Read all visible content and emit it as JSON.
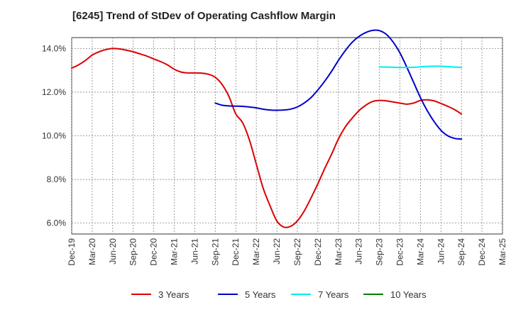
{
  "chart_data": {
    "type": "line",
    "title": "[6245]  Trend of StDev of Operating Cashflow Margin",
    "xlabel": "",
    "ylabel": "",
    "x_ticks": [
      "Dec-19",
      "Mar-20",
      "Jun-20",
      "Sep-20",
      "Dec-20",
      "Mar-21",
      "Jun-21",
      "Sep-21",
      "Dec-21",
      "Mar-22",
      "Jun-22",
      "Sep-22",
      "Dec-22",
      "Mar-23",
      "Jun-23",
      "Sep-23",
      "Dec-23",
      "Mar-24",
      "Jun-24",
      "Sep-24",
      "Dec-24",
      "Mar-25"
    ],
    "y_ticks": [
      6.0,
      8.0,
      10.0,
      12.0,
      14.0
    ],
    "y_tick_labels": [
      "6.0%",
      "8.0%",
      "10.0%",
      "12.0%",
      "14.0%"
    ],
    "ylim": [
      5.5,
      14.5
    ],
    "grid": true,
    "legend_position": "bottom",
    "series": [
      {
        "name": "3 Years",
        "color": "#dd0000",
        "x": [
          "Dec-19",
          "Jan-20",
          "Feb-20",
          "Mar-20",
          "Apr-20",
          "May-20",
          "Jun-20",
          "Jul-20",
          "Aug-20",
          "Sep-20",
          "Oct-20",
          "Nov-20",
          "Dec-20",
          "Jan-21",
          "Feb-21",
          "Mar-21",
          "Apr-21",
          "May-21",
          "Jun-21",
          "Jul-21",
          "Aug-21",
          "Sep-21",
          "Oct-21",
          "Nov-21",
          "Dec-21",
          "Jan-22",
          "Feb-22",
          "Mar-22",
          "Apr-22",
          "May-22",
          "Jun-22",
          "Jul-22",
          "Aug-22",
          "Sep-22",
          "Oct-22",
          "Nov-22",
          "Dec-22",
          "Jan-23",
          "Feb-23",
          "Mar-23",
          "Apr-23",
          "May-23",
          "Jun-23",
          "Jul-23",
          "Aug-23",
          "Sep-23",
          "Oct-23",
          "Nov-23",
          "Dec-23",
          "Jan-24",
          "Feb-24",
          "Mar-24",
          "Apr-24",
          "May-24",
          "Jun-24",
          "Jul-24",
          "Aug-24",
          "Sep-24"
        ],
        "values": [
          13.1,
          13.25,
          13.45,
          13.7,
          13.85,
          13.95,
          14.0,
          13.98,
          13.92,
          13.85,
          13.75,
          13.65,
          13.52,
          13.4,
          13.25,
          13.05,
          12.92,
          12.88,
          12.88,
          12.87,
          12.82,
          12.68,
          12.35,
          11.8,
          11.0,
          10.6,
          9.8,
          8.7,
          7.6,
          6.8,
          6.1,
          5.82,
          5.85,
          6.1,
          6.55,
          7.15,
          7.8,
          8.5,
          9.15,
          9.85,
          10.4,
          10.8,
          11.15,
          11.4,
          11.57,
          11.62,
          11.6,
          11.55,
          11.5,
          11.45,
          11.5,
          11.62,
          11.65,
          11.6,
          11.48,
          11.35,
          11.2,
          11.0
        ]
      },
      {
        "name": "5 Years",
        "color": "#0000cc",
        "x": [
          "Sep-21",
          "Oct-21",
          "Nov-21",
          "Dec-21",
          "Jan-22",
          "Feb-22",
          "Mar-22",
          "Apr-22",
          "May-22",
          "Jun-22",
          "Jul-22",
          "Aug-22",
          "Sep-22",
          "Oct-22",
          "Nov-22",
          "Dec-22",
          "Jan-23",
          "Feb-23",
          "Mar-23",
          "Apr-23",
          "May-23",
          "Jun-23",
          "Jul-23",
          "Aug-23",
          "Sep-23",
          "Oct-23",
          "Nov-23",
          "Dec-23",
          "Jan-24",
          "Feb-24",
          "Mar-24",
          "Apr-24",
          "May-24",
          "Jun-24",
          "Jul-24",
          "Aug-24",
          "Sep-24"
        ],
        "values": [
          11.5,
          11.4,
          11.37,
          11.36,
          11.35,
          11.32,
          11.28,
          11.22,
          11.18,
          11.17,
          11.18,
          11.22,
          11.32,
          11.5,
          11.75,
          12.1,
          12.5,
          12.95,
          13.45,
          13.9,
          14.28,
          14.55,
          14.73,
          14.83,
          14.82,
          14.65,
          14.3,
          13.8,
          13.15,
          12.45,
          11.75,
          11.15,
          10.65,
          10.25,
          10.0,
          9.88,
          9.85
        ]
      },
      {
        "name": "7 Years",
        "color": "#00eeee",
        "x": [
          "Sep-23",
          "Oct-23",
          "Nov-23",
          "Dec-23",
          "Jan-24",
          "Feb-24",
          "Mar-24",
          "Apr-24",
          "May-24",
          "Jun-24",
          "Jul-24",
          "Aug-24",
          "Sep-24"
        ],
        "values": [
          13.15,
          13.15,
          13.14,
          13.13,
          13.13,
          13.14,
          13.16,
          13.18,
          13.19,
          13.19,
          13.17,
          13.15,
          13.13
        ]
      },
      {
        "name": "10 Years",
        "color": "#008000",
        "x": [],
        "values": []
      }
    ]
  }
}
